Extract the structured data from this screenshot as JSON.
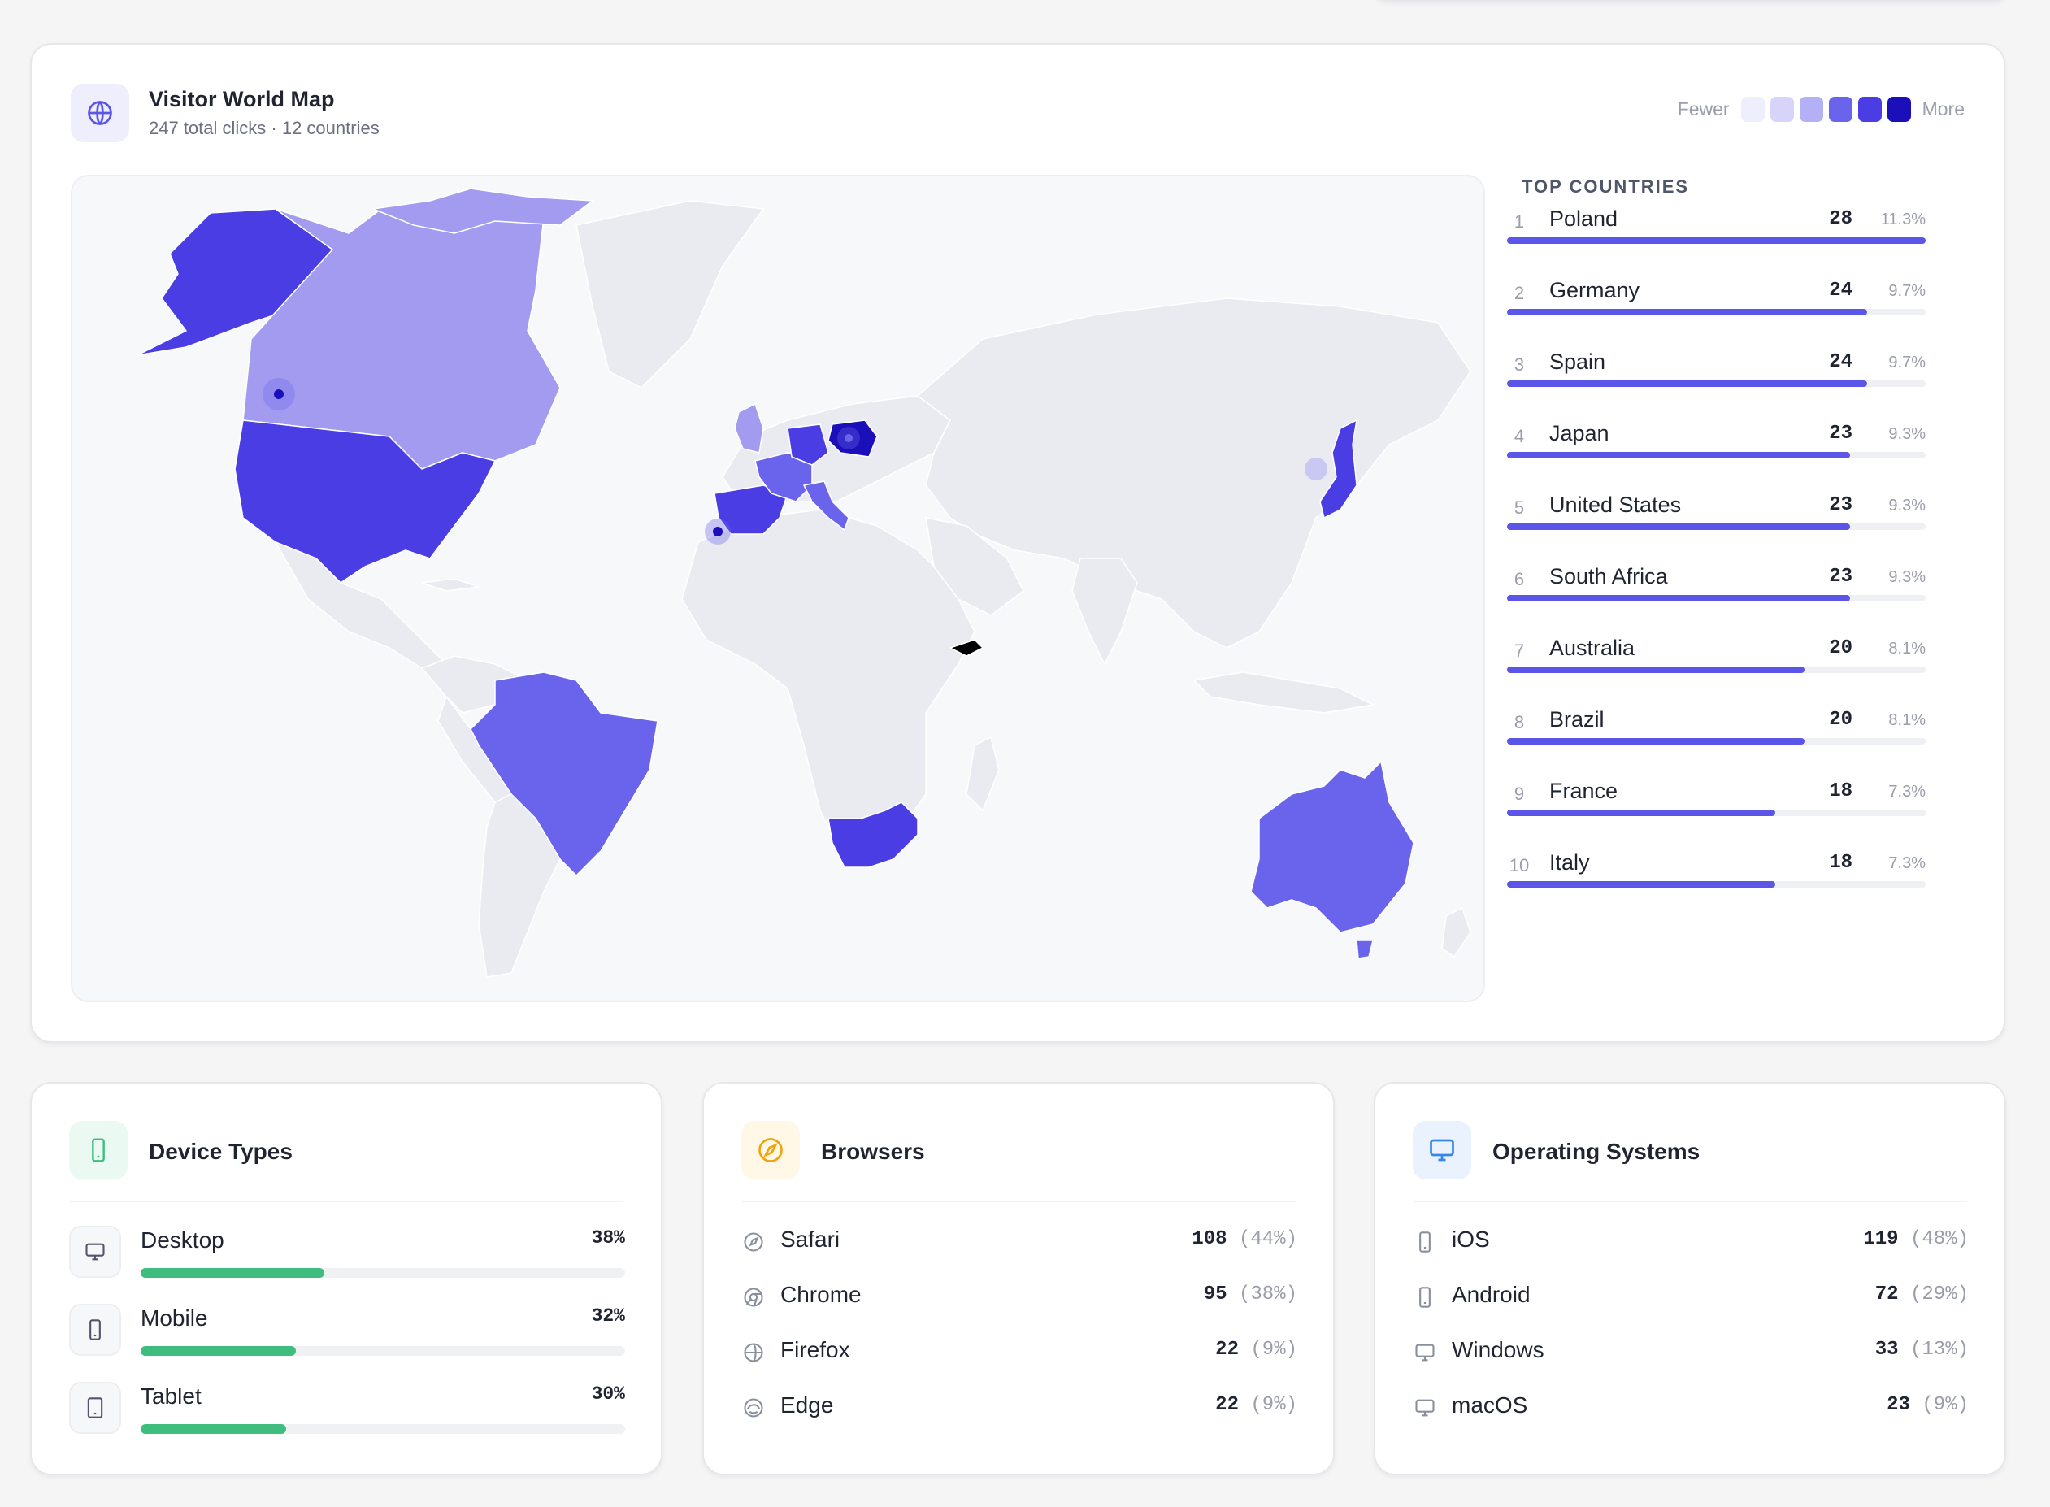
{
  "world_map": {
    "title": "Visitor World Map",
    "subtitle": "247 total clicks · 12 countries",
    "legend": {
      "fewer_label": "Fewer",
      "more_label": "More",
      "scale_colors": [
        "#eeeffd",
        "#d6d5f9",
        "#b3b0f5",
        "#6a63ec",
        "#4a3de4",
        "#1a0fb8"
      ]
    },
    "top_countries_title": "TOP COUNTRIES",
    "top_countries": [
      {
        "rank": "1",
        "name": "Poland",
        "count": "28",
        "pct": "11.3%",
        "share": 1.0
      },
      {
        "rank": "2",
        "name": "Germany",
        "count": "24",
        "pct": "9.7%",
        "share": 0.86
      },
      {
        "rank": "3",
        "name": "Spain",
        "count": "24",
        "pct": "9.7%",
        "share": 0.86
      },
      {
        "rank": "4",
        "name": "Japan",
        "count": "23",
        "pct": "9.3%",
        "share": 0.82
      },
      {
        "rank": "5",
        "name": "United States",
        "count": "23",
        "pct": "9.3%",
        "share": 0.82
      },
      {
        "rank": "6",
        "name": "South Africa",
        "count": "23",
        "pct": "9.3%",
        "share": 0.82
      },
      {
        "rank": "7",
        "name": "Australia",
        "count": "20",
        "pct": "8.1%",
        "share": 0.71
      },
      {
        "rank": "8",
        "name": "Brazil",
        "count": "20",
        "pct": "8.1%",
        "share": 0.71
      },
      {
        "rank": "9",
        "name": "France",
        "count": "18",
        "pct": "7.3%",
        "share": 0.64
      },
      {
        "rank": "10",
        "name": "Italy",
        "count": "18",
        "pct": "7.3%",
        "share": 0.64
      }
    ],
    "colors": {
      "base_land": "#e9ebf1",
      "low": "#a29bf0",
      "mid": "#6a63ec",
      "high": "#4a3de4",
      "top": "#1a0fb8"
    }
  },
  "device_types": {
    "title": "Device Types",
    "items": [
      {
        "label": "Desktop",
        "pct": "38%",
        "share": 0.38,
        "icon": "monitor-icon"
      },
      {
        "label": "Mobile",
        "pct": "32%",
        "share": 0.32,
        "icon": "smartphone-icon"
      },
      {
        "label": "Tablet",
        "pct": "30%",
        "share": 0.3,
        "icon": "tablet-icon"
      }
    ],
    "bar_color": "#3fbd7f"
  },
  "browsers": {
    "title": "Browsers",
    "items": [
      {
        "label": "Safari",
        "count": "108",
        "pct": "(44%)",
        "icon": "compass-icon"
      },
      {
        "label": "Chrome",
        "count": "95",
        "pct": "(38%)",
        "icon": "chrome-icon"
      },
      {
        "label": "Firefox",
        "count": "22",
        "pct": "(9%)",
        "icon": "globe-icon"
      },
      {
        "label": "Edge",
        "count": "22",
        "pct": "(9%)",
        "icon": "edge-icon"
      }
    ]
  },
  "operating_systems": {
    "title": "Operating Systems",
    "items": [
      {
        "label": "iOS",
        "count": "119",
        "pct": "(48%)",
        "icon": "smartphone-icon"
      },
      {
        "label": "Android",
        "count": "72",
        "pct": "(29%)",
        "icon": "smartphone-icon"
      },
      {
        "label": "Windows",
        "count": "33",
        "pct": "(13%)",
        "icon": "monitor-icon"
      },
      {
        "label": "macOS",
        "count": "23",
        "pct": "(9%)",
        "icon": "monitor-icon"
      }
    ]
  }
}
